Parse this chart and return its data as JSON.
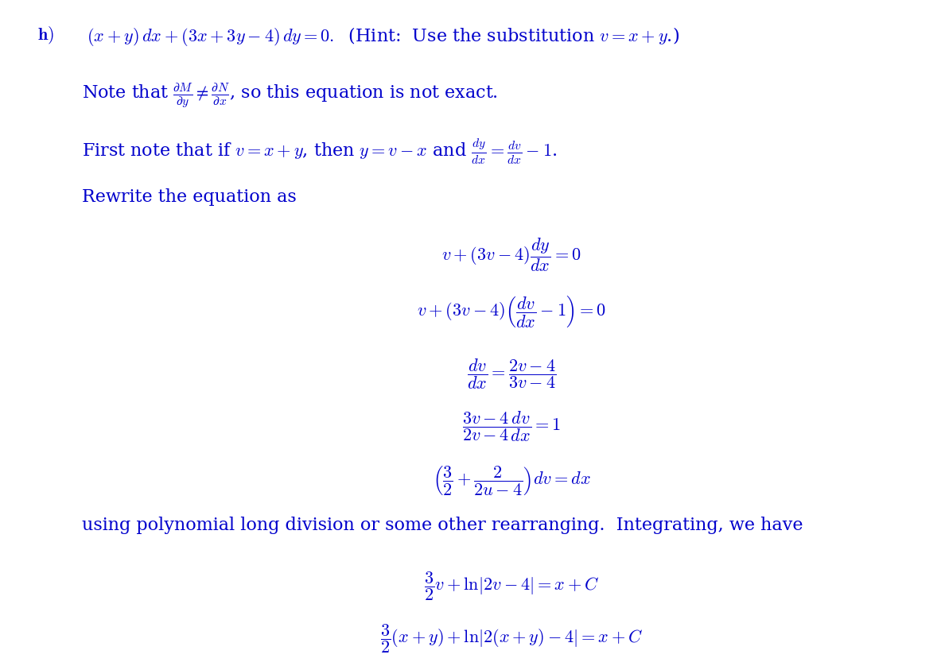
{
  "bg_color": "#ffffff",
  "text_color": "#0000cc",
  "fig_width": 11.88,
  "fig_height": 8.38
}
